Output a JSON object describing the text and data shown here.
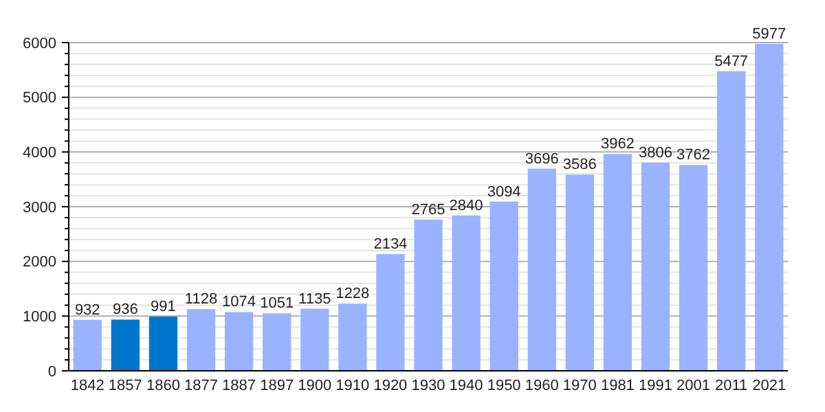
{
  "chart_data": {
    "type": "bar",
    "categories": [
      "1842",
      "1857",
      "1860",
      "1877",
      "1887",
      "1897",
      "1900",
      "1910",
      "1920",
      "1930",
      "1940",
      "1950",
      "1960",
      "1970",
      "1981",
      "1991",
      "2001",
      "2011",
      "2021"
    ],
    "values": [
      932,
      936,
      991,
      1128,
      1074,
      1051,
      1135,
      1228,
      2134,
      2765,
      2840,
      3094,
      3696,
      3586,
      3962,
      3806,
      3762,
      5477,
      5977
    ],
    "colors": [
      "#99b3ff",
      "#0077cc",
      "#0077cc",
      "#99b3ff",
      "#99b3ff",
      "#99b3ff",
      "#99b3ff",
      "#99b3ff",
      "#99b3ff",
      "#99b3ff",
      "#99b3ff",
      "#99b3ff",
      "#99b3ff",
      "#99b3ff",
      "#99b3ff",
      "#99b3ff",
      "#99b3ff",
      "#99b3ff",
      "#99b3ff"
    ],
    "ylim": [
      0,
      6000
    ],
    "yticks": [
      0,
      {
        "value": 200,
        "label": null
      },
      {
        "value": 400,
        "label": null
      },
      {
        "value": 600,
        "label": null
      },
      {
        "value": 800,
        "label": null
      },
      1000,
      {
        "value": 1200,
        "label": null
      },
      {
        "value": 1400,
        "label": null
      },
      {
        "value": 1600,
        "label": null
      },
      {
        "value": 1800,
        "label": null
      },
      2000,
      {
        "value": 2200,
        "label": null
      },
      {
        "value": 2400,
        "label": null
      },
      {
        "value": 2600,
        "label": null
      },
      {
        "value": 2800,
        "label": null
      },
      3000,
      {
        "value": 3200,
        "label": null
      },
      {
        "value": 3400,
        "label": null
      },
      {
        "value": 3600,
        "label": null
      },
      {
        "value": 3800,
        "label": null
      },
      4000,
      {
        "value": 4200,
        "label": null
      },
      {
        "value": 4400,
        "label": null
      },
      {
        "value": 4600,
        "label": null
      },
      {
        "value": 4800,
        "label": null
      },
      5000,
      {
        "value": 5200,
        "label": null
      },
      {
        "value": 5400,
        "label": null
      },
      {
        "value": 5600,
        "label": null
      },
      {
        "value": 5800,
        "label": null
      },
      6000
    ],
    "grid": true,
    "data_labels": true
  }
}
